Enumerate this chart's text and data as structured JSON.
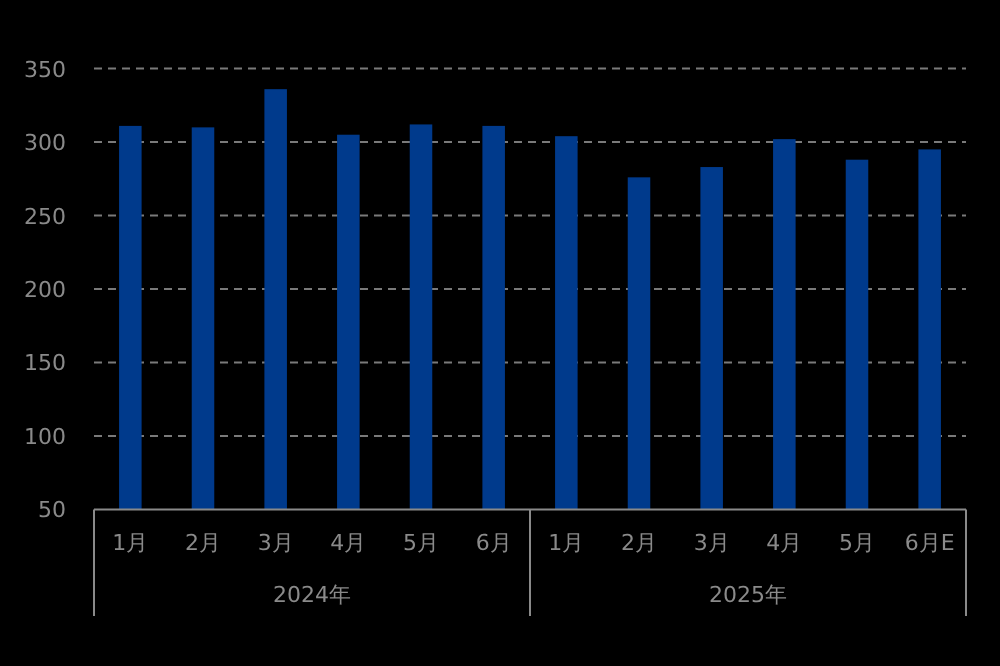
{
  "chart_data": {
    "type": "bar",
    "categories": [
      "1月",
      "2月",
      "3月",
      "4月",
      "5月",
      "6月",
      "1月",
      "2月",
      "3月",
      "4月",
      "5月",
      "6月E"
    ],
    "values": [
      311,
      310,
      336,
      305,
      312,
      311,
      304,
      276,
      283,
      302,
      288,
      295
    ],
    "color": "#003a8c",
    "ylim": [
      50,
      350
    ],
    "yticks": [
      50,
      100,
      150,
      200,
      250,
      300,
      350
    ],
    "grid": "y",
    "annotations": [
      "2024年",
      "2025年"
    ]
  }
}
